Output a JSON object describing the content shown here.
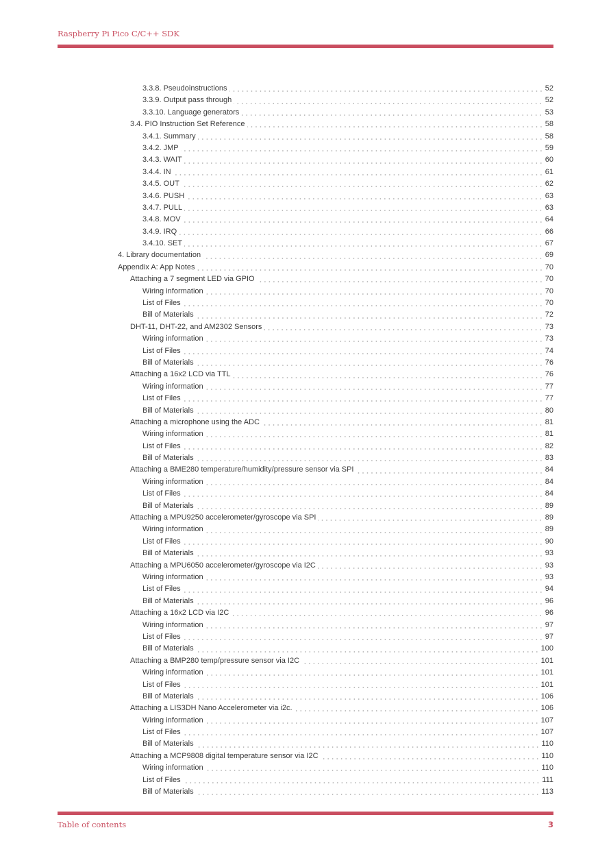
{
  "header": {
    "title": "Raspberry Pi Pico C/C++ SDK"
  },
  "footer": {
    "section": "Table of contents",
    "page": "3"
  },
  "colors": {
    "accent": "#c94e60",
    "text": "#3a3a3a"
  },
  "toc": [
    {
      "level": 2,
      "label": "3.3.8. Pseudoinstructions",
      "page": "52"
    },
    {
      "level": 2,
      "label": "3.3.9. Output pass through",
      "page": "52"
    },
    {
      "level": 2,
      "label": "3.3.10. Language generators",
      "page": "53"
    },
    {
      "level": 1,
      "label": "3.4. PIO Instruction Set Reference",
      "page": "58"
    },
    {
      "level": 2,
      "label": "3.4.1. Summary",
      "page": "58"
    },
    {
      "level": 2,
      "label": "3.4.2. JMP",
      "page": "59"
    },
    {
      "level": 2,
      "label": "3.4.3. WAIT",
      "page": "60"
    },
    {
      "level": 2,
      "label": "3.4.4. IN",
      "page": "61"
    },
    {
      "level": 2,
      "label": "3.4.5. OUT",
      "page": "62"
    },
    {
      "level": 2,
      "label": "3.4.6. PUSH",
      "page": "63"
    },
    {
      "level": 2,
      "label": "3.4.7. PULL",
      "page": "63"
    },
    {
      "level": 2,
      "label": "3.4.8. MOV",
      "page": "64"
    },
    {
      "level": 2,
      "label": "3.4.9. IRQ",
      "page": "66"
    },
    {
      "level": 2,
      "label": "3.4.10. SET",
      "page": "67"
    },
    {
      "level": 0,
      "label": "4. Library documentation",
      "page": "69"
    },
    {
      "level": 0,
      "label": "Appendix A: App Notes",
      "page": "70"
    },
    {
      "level": 1,
      "label": "Attaching a 7 segment LED via GPIO",
      "page": "70"
    },
    {
      "level": 2,
      "label": "Wiring information",
      "page": "70"
    },
    {
      "level": 2,
      "label": "List of Files",
      "page": "70"
    },
    {
      "level": 2,
      "label": "Bill of Materials",
      "page": "72"
    },
    {
      "level": 1,
      "label": "DHT-11, DHT-22, and AM2302 Sensors",
      "page": "73"
    },
    {
      "level": 2,
      "label": "Wiring information",
      "page": "73"
    },
    {
      "level": 2,
      "label": "List of Files",
      "page": "74"
    },
    {
      "level": 2,
      "label": "Bill of Materials",
      "page": "76"
    },
    {
      "level": 1,
      "label": "Attaching a 16x2 LCD via TTL",
      "page": "76"
    },
    {
      "level": 2,
      "label": "Wiring information",
      "page": "77"
    },
    {
      "level": 2,
      "label": "List of Files",
      "page": "77"
    },
    {
      "level": 2,
      "label": "Bill of Materials",
      "page": "80"
    },
    {
      "level": 1,
      "label": "Attaching a microphone using the ADC",
      "page": "81"
    },
    {
      "level": 2,
      "label": "Wiring information",
      "page": "81"
    },
    {
      "level": 2,
      "label": "List of Files",
      "page": "82"
    },
    {
      "level": 2,
      "label": "Bill of Materials",
      "page": "83"
    },
    {
      "level": 1,
      "label": "Attaching a BME280 temperature/humidity/pressure sensor via SPI",
      "page": "84"
    },
    {
      "level": 2,
      "label": "Wiring information",
      "page": "84"
    },
    {
      "level": 2,
      "label": "List of Files",
      "page": "84"
    },
    {
      "level": 2,
      "label": "Bill of Materials",
      "page": "89"
    },
    {
      "level": 1,
      "label": "Attaching a MPU9250 accelerometer/gyroscope via SPI",
      "page": "89"
    },
    {
      "level": 2,
      "label": "Wiring information",
      "page": "89"
    },
    {
      "level": 2,
      "label": "List of Files",
      "page": "90"
    },
    {
      "level": 2,
      "label": "Bill of Materials",
      "page": "93"
    },
    {
      "level": 1,
      "label": "Attaching a MPU6050 accelerometer/gyroscope via I2C",
      "page": "93"
    },
    {
      "level": 2,
      "label": "Wiring information",
      "page": "93"
    },
    {
      "level": 2,
      "label": "List of Files",
      "page": "94"
    },
    {
      "level": 2,
      "label": "Bill of Materials",
      "page": "96"
    },
    {
      "level": 1,
      "label": "Attaching a 16x2 LCD via I2C",
      "page": "96"
    },
    {
      "level": 2,
      "label": "Wiring information",
      "page": "97"
    },
    {
      "level": 2,
      "label": "List of Files",
      "page": "97"
    },
    {
      "level": 2,
      "label": "Bill of Materials",
      "page": "100"
    },
    {
      "level": 1,
      "label": "Attaching a BMP280 temp/pressure sensor via I2C",
      "page": "101"
    },
    {
      "level": 2,
      "label": "Wiring information",
      "page": "101"
    },
    {
      "level": 2,
      "label": "List of Files",
      "page": "101"
    },
    {
      "level": 2,
      "label": "Bill of Materials",
      "page": "106"
    },
    {
      "level": 1,
      "label": "Attaching a LIS3DH Nano Accelerometer via i2c.",
      "page": "106"
    },
    {
      "level": 2,
      "label": "Wiring information",
      "page": "107"
    },
    {
      "level": 2,
      "label": "List of Files",
      "page": "107"
    },
    {
      "level": 2,
      "label": "Bill of Materials",
      "page": "110"
    },
    {
      "level": 1,
      "label": "Attaching a MCP9808 digital temperature sensor via I2C",
      "page": "110"
    },
    {
      "level": 2,
      "label": "Wiring information",
      "page": "110"
    },
    {
      "level": 2,
      "label": "List of Files",
      "page": "111"
    },
    {
      "level": 2,
      "label": "Bill of Materials",
      "page": "113"
    }
  ]
}
